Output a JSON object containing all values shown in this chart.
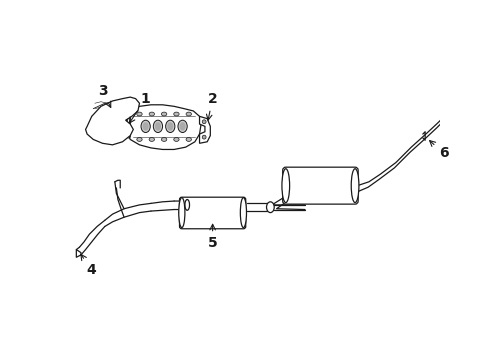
{
  "bg_color": "#ffffff",
  "line_color": "#1a1a1a",
  "lw": 0.9,
  "figsize": [
    4.9,
    3.6
  ],
  "dpi": 100,
  "xlim": [
    0,
    490
  ],
  "ylim": [
    0,
    360
  ]
}
